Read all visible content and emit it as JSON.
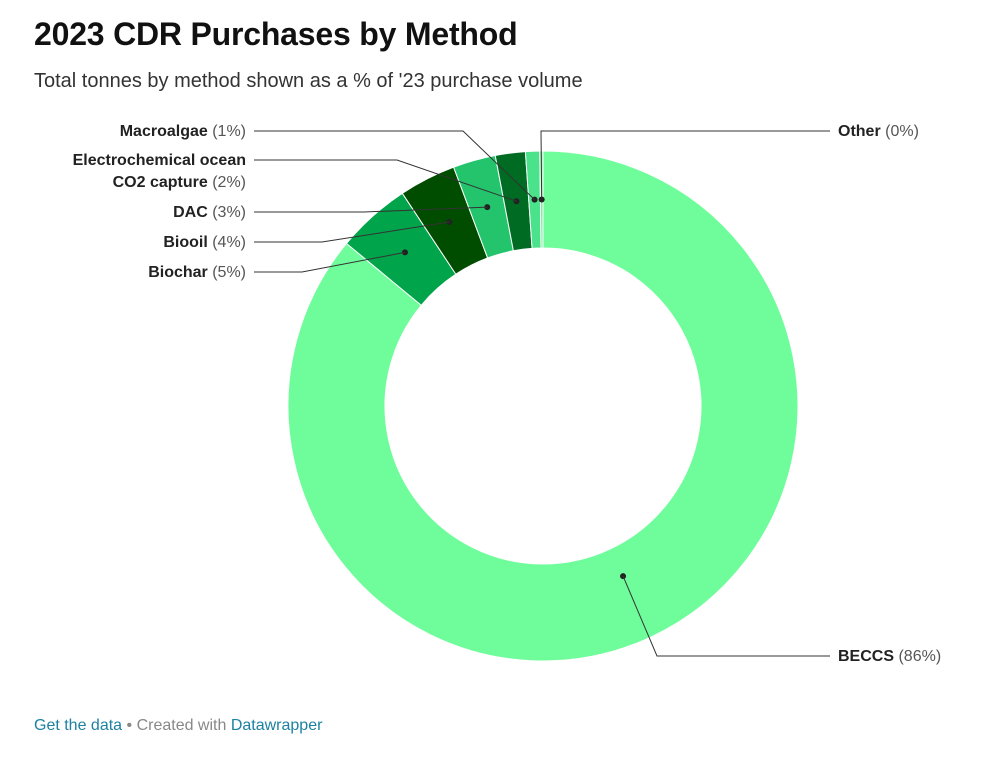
{
  "title": "2023 CDR Purchases by Method",
  "subtitle": "Total tonnes by method shown as a % of '23 purchase volume",
  "footer": {
    "get_data": "Get the data",
    "separator": " • ",
    "created_with": "Created with ",
    "tool": "Datawrapper"
  },
  "chart_data": {
    "type": "pie",
    "variant": "donut",
    "start_at_top": true,
    "direction": "clockwise",
    "values_unit": "% of 2023 purchase volume",
    "slices": [
      {
        "name": "BECCS",
        "pct_label": "(86%)",
        "value": 86.0,
        "color": "#6ffd9b"
      },
      {
        "name": "Biochar",
        "pct_label": "(5%)",
        "value": 4.7,
        "color": "#00a44b"
      },
      {
        "name": "Biooil",
        "pct_label": "(4%)",
        "value": 3.6,
        "color": "#004d00"
      },
      {
        "name": "DAC",
        "pct_label": "(3%)",
        "value": 2.7,
        "color": "#24c46d"
      },
      {
        "name": "Electrochemical ocean\nCO2 capture",
        "pct_label": "(2%)",
        "value": 1.9,
        "color": "#006b22"
      },
      {
        "name": "Macroalgae",
        "pct_label": "(1%)",
        "value": 0.9,
        "color": "#4ae28a"
      },
      {
        "name": "Other",
        "pct_label": "(0%)",
        "value": 0.2,
        "color": "#7fe8a2"
      }
    ]
  }
}
